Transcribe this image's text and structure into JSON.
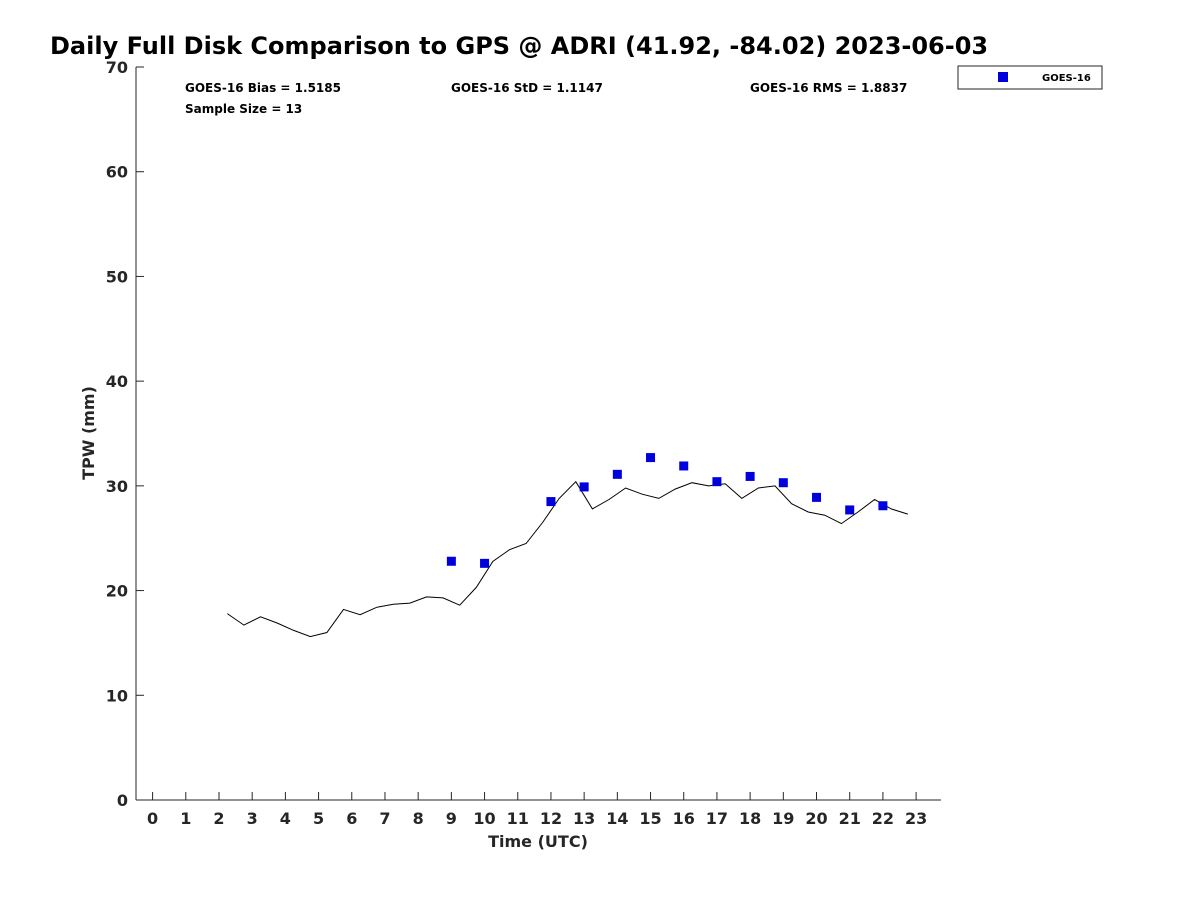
{
  "chart_data": {
    "type": "scatter",
    "title": "Daily Full Disk Comparison to GPS @ ADRI (41.92, -84.02) 2023-06-03",
    "xlabel": "Time (UTC)",
    "ylabel": "TPW (mm)",
    "xlim": [
      -0.5,
      23.75
    ],
    "ylim": [
      0,
      70
    ],
    "x_ticks": [
      "0",
      "1",
      "2",
      "3",
      "4",
      "5",
      "6",
      "7",
      "8",
      "9",
      "10",
      "11",
      "12",
      "13",
      "14",
      "15",
      "16",
      "17",
      "18",
      "19",
      "20",
      "21",
      "22",
      "23"
    ],
    "y_ticks": [
      "0",
      "10",
      "20",
      "30",
      "40",
      "50",
      "60",
      "70"
    ],
    "grid": false,
    "legend_position": "top-right (outside plot)",
    "stats": {
      "bias": "GOES-16 Bias = 1.5185",
      "std": "GOES-16 StD = 1.1147",
      "rms": "GOES-16 RMS = 1.8837",
      "sample": "Sample Size = 13"
    },
    "series": [
      {
        "name": "GOES-16",
        "kind": "scatter",
        "marker": "square",
        "color": "#0000dd",
        "x": [
          9,
          10,
          12,
          13,
          14,
          15,
          16,
          17,
          18,
          19,
          20,
          21,
          22
        ],
        "y": [
          22.8,
          22.6,
          28.5,
          29.9,
          31.1,
          32.7,
          31.9,
          30.4,
          30.9,
          30.3,
          28.9,
          27.7,
          28.1
        ]
      },
      {
        "kind": "line",
        "color": "#000000",
        "x": [
          2.25,
          2.75,
          3.25,
          3.75,
          4.25,
          4.75,
          5.25,
          5.75,
          6.25,
          6.75,
          7.25,
          7.75,
          8.25,
          8.75,
          9.25,
          9.75,
          10.25,
          10.75,
          11.25,
          11.75,
          12.25,
          12.75,
          13.25,
          13.75,
          14.25,
          14.75,
          15.25,
          15.75,
          16.25,
          16.75,
          17.25,
          17.75,
          18.25,
          18.75,
          19.25,
          19.75,
          20.25,
          20.75,
          21.25,
          21.75,
          22.25,
          22.75
        ],
        "y": [
          17.8,
          16.7,
          17.5,
          16.9,
          16.2,
          15.6,
          16.0,
          18.2,
          17.7,
          18.4,
          18.7,
          18.8,
          19.4,
          19.3,
          18.6,
          20.3,
          22.8,
          23.9,
          24.5,
          26.5,
          28.8,
          30.4,
          27.8,
          28.7,
          29.8,
          29.2,
          28.8,
          29.7,
          30.3,
          30.0,
          30.2,
          28.8,
          29.8,
          30.0,
          28.3,
          27.5,
          27.2,
          26.4,
          27.5,
          28.7,
          27.8,
          27.3
        ]
      }
    ]
  }
}
